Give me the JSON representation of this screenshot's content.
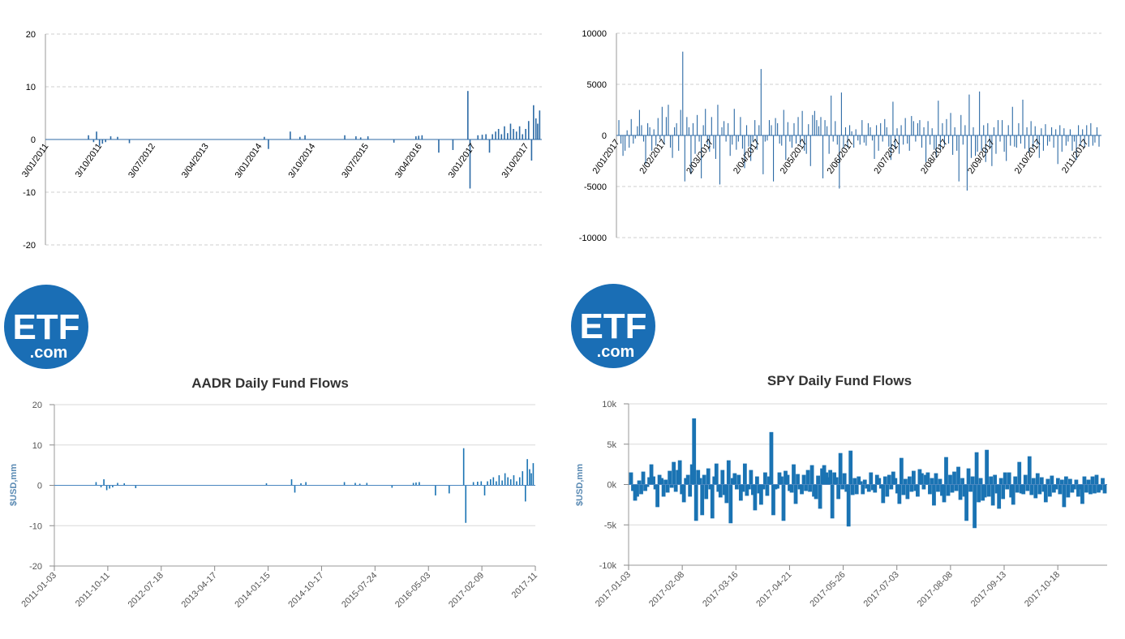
{
  "logo": {
    "big": "ETF",
    "small": ".com",
    "color": "#1a6eb5"
  },
  "chart_data": [
    {
      "type": "bar",
      "ylim": [
        -20,
        20
      ],
      "yticks": [
        -20,
        -10,
        0,
        10,
        20
      ],
      "x_tick_labels": [
        "3/01/2011",
        "3/10/2011",
        "3/07/2012",
        "3/04/2013",
        "3/01/2014",
        "3/10/2014",
        "3/07/2015",
        "3/04/2016",
        "3/01/2017",
        "3/10/2017"
      ],
      "grid": true,
      "color": "#2c6aa5",
      "x_range": [
        "2011-01-03",
        "2017-12-01"
      ],
      "x": [
        "2011-08-10",
        "2011-09-05",
        "2011-09-20",
        "2011-10-05",
        "2011-10-20",
        "2011-11-05",
        "2011-12-01",
        "2012-01-05",
        "2012-03-05",
        "2014-01-20",
        "2014-02-10",
        "2014-06-01",
        "2014-07-20",
        "2014-08-15",
        "2015-03-05",
        "2015-05-01",
        "2015-05-25",
        "2015-07-01",
        "2015-11-10",
        "2016-03-01",
        "2016-03-15",
        "2016-04-01",
        "2016-06-25",
        "2016-09-05",
        "2016-11-20",
        "2016-12-01",
        "2017-01-10",
        "2017-02-01",
        "2017-02-20",
        "2017-03-10",
        "2017-03-25",
        "2017-04-10",
        "2017-04-25",
        "2017-05-10",
        "2017-05-25",
        "2017-06-10",
        "2017-06-25",
        "2017-07-10",
        "2017-07-25",
        "2017-08-10",
        "2017-08-25",
        "2017-09-10",
        "2017-09-25",
        "2017-10-10",
        "2017-10-20",
        "2017-11-01",
        "2017-11-10",
        "2017-11-20"
      ],
      "values": [
        0.8,
        -0.5,
        1.5,
        -1.2,
        -0.8,
        -0.5,
        0.6,
        0.5,
        -0.7,
        0.5,
        -1.8,
        1.5,
        0.5,
        0.8,
        0.8,
        0.6,
        0.4,
        0.6,
        -0.6,
        0.6,
        0.7,
        0.8,
        -2.5,
        -2.0,
        9.2,
        -9.3,
        0.8,
        0.9,
        1.0,
        -2.5,
        1.0,
        1.5,
        2.0,
        1.0,
        2.5,
        1.2,
        3.0,
        2.0,
        1.5,
        2.5,
        1.0,
        2.0,
        3.5,
        -4.0,
        6.5,
        4.0,
        3.0,
        5.5
      ]
    },
    {
      "type": "bar",
      "ylim": [
        -10000,
        10000
      ],
      "yticks": [
        -10000,
        -5000,
        0,
        5000,
        10000
      ],
      "x_tick_labels": [
        "2/01/2017",
        "2/02/2017",
        "2/03/2017",
        "2/04/2017",
        "2/05/2017",
        "2/06/2017",
        "2/07/2017",
        "2/08/2017",
        "2/09/2017",
        "2/10/2017",
        "2/11/2017"
      ],
      "grid": true,
      "color": "#2c6aa5",
      "x_range": [
        "2017-01-03",
        "2017-11-24"
      ],
      "values": [
        1500,
        -800,
        -2000,
        -1500,
        500,
        -1200,
        1600,
        -800,
        -300,
        900,
        2500,
        1000,
        -600,
        -2800,
        1200,
        800,
        -1500,
        600,
        -1000,
        1700,
        -400,
        2800,
        -900,
        1800,
        3000,
        -1200,
        -2200,
        800,
        1200,
        -1500,
        2500,
        8200,
        -4500,
        1800,
        800,
        -3800,
        1200,
        -1800,
        2000,
        -600,
        -4200,
        1000,
        2600,
        -900,
        -1600,
        1800,
        -1300,
        -2300,
        3000,
        -4800,
        800,
        1400,
        -600,
        1200,
        -2000,
        -900,
        2600,
        -1400,
        -600,
        1800,
        -1300,
        -3200,
        1000,
        -1100,
        -2500,
        -600,
        1500,
        -1400,
        1000,
        6500,
        -3800,
        -600,
        -500,
        1500,
        1000,
        -4500,
        1700,
        1200,
        -800,
        -1000,
        2500,
        -2400,
        1300,
        -600,
        -1200,
        1200,
        -800,
        1800,
        -900,
        2400,
        -1500,
        -1800,
        1100,
        -3000,
        2000,
        2400,
        1500,
        900,
        1800,
        -4200,
        1500,
        900,
        -1800,
        3900,
        -600,
        1400,
        -900,
        -5200,
        4200,
        -1300,
        800,
        -1200,
        1000,
        400,
        -1200,
        600,
        -500,
        -900,
        1500,
        -700,
        -1000,
        1200,
        800,
        -500,
        -2300,
        1000,
        -1500,
        1200,
        -600,
        1600,
        800,
        -1100,
        -2400,
        3300,
        -1300,
        700,
        -1800,
        1000,
        -900,
        1700,
        -800,
        -1500,
        1900,
        1400,
        -600,
        1200,
        1500,
        -1200,
        800,
        -2600,
        1400,
        -900,
        700,
        -1400,
        -2200,
        3400,
        -1400,
        1200,
        -1000,
        1600,
        -800,
        2200,
        -1900,
        800,
        -1500,
        -4500,
        2000,
        -900,
        1000,
        -5400,
        4000,
        -2200,
        800,
        -2000,
        -1600,
        4300,
        -1500,
        1000,
        -2600,
        1200,
        -1100,
        -3000,
        800,
        -1800,
        1500,
        -600,
        1500,
        -1600,
        -2500,
        1000,
        -1000,
        2800,
        -1100,
        -1200,
        1200,
        -800,
        3500,
        -1300,
        800,
        -1700,
        1400,
        -1200,
        900,
        -900,
        -2200,
        700,
        -1500,
        1100,
        -1000,
        -600,
        800,
        -1200,
        600,
        -2800,
        1000,
        -1600,
        700,
        -1000,
        -600,
        600,
        -1500,
        -600,
        -2400,
        1000,
        -1000,
        600,
        -1200,
        1000,
        -1100,
        1200,
        -1000,
        -700,
        800,
        -1100
      ]
    },
    {
      "type": "bar",
      "title": "AADR Daily Fund Flows",
      "ylabel": "$USD,mm",
      "ylim": [
        -20,
        20
      ],
      "yticks": [
        -20,
        -10,
        0,
        10,
        20
      ],
      "x_tick_labels": [
        "2011-01-03",
        "2011-10-11",
        "2012-07-18",
        "2013-04-17",
        "2014-01-15",
        "2014-10-17",
        "2015-07-24",
        "2016-05-03",
        "2017-02-09",
        "2017-11"
      ],
      "grid": true,
      "color": "#1a73b3",
      "x_range": [
        "2011-01-03",
        "2017-12-01"
      ],
      "x": [
        "2011-08-10",
        "2011-09-05",
        "2011-09-20",
        "2011-10-05",
        "2011-10-20",
        "2011-11-05",
        "2011-12-01",
        "2012-01-05",
        "2012-03-05",
        "2014-01-20",
        "2014-0210",
        "2014-06-01",
        "2014-07-20",
        "2014-08-15",
        "2015-03-05",
        "2015-05-01",
        "2015-05-25",
        "2015-07-01",
        "2015-11-10",
        "2016-03-01",
        "2016-03-15",
        "2016-04-01",
        "2016-06-25",
        "2016-09-05",
        "2016-11-20",
        "2016-12-01",
        "2017-01-10",
        "2017-02-01",
        "2017-02-20",
        "2017-03-10",
        "2017-03-25",
        "2017-04-10",
        "2017-04-25",
        "2017-05-10",
        "2017-05-25",
        "2017-06-10",
        "2017-06-25",
        "2017-07-10",
        "2017-07-25",
        "2017-08-10",
        "2017-08-25",
        "2017-09-10",
        "2017-09-25",
        "2017-10-10",
        "2017-10-20",
        "2017-11-01",
        "2017-11-10",
        "2017-11-20"
      ],
      "values": [
        0.8,
        -0.5,
        1.5,
        -1.2,
        -0.8,
        -0.5,
        0.6,
        0.5,
        -0.7,
        0.5,
        -1.8,
        1.5,
        0.5,
        0.8,
        0.8,
        0.6,
        0.4,
        0.6,
        -0.6,
        0.6,
        0.7,
        0.8,
        -2.5,
        -2.0,
        9.2,
        -9.3,
        0.8,
        0.9,
        1.0,
        -2.5,
        1.0,
        1.5,
        2.0,
        1.0,
        2.5,
        1.2,
        3.0,
        2.0,
        1.5,
        2.5,
        1.0,
        2.0,
        3.5,
        -4.0,
        6.5,
        4.0,
        3.0,
        5.5
      ]
    },
    {
      "type": "bar",
      "title": "SPY Daily Fund Flows",
      "ylabel": "$USD,mm",
      "ylim": [
        -10000,
        10000
      ],
      "yticks": [
        -10000,
        -5000,
        0,
        5000,
        10000
      ],
      "ytick_labels": [
        "-10k",
        "-5k",
        "0k",
        "5k",
        "10k"
      ],
      "x_tick_labels": [
        "2017-01-03",
        "2017-02-08",
        "2017-03-16",
        "2017-04-21",
        "2017-05-26",
        "2017-07-03",
        "2017-08-08",
        "2017-09-13",
        "2017-10-18"
      ],
      "grid": true,
      "color": "#1a73b3",
      "x_range": [
        "2017-01-03",
        "2017-11-24"
      ],
      "values": [
        1500,
        -800,
        -2000,
        -1500,
        500,
        -1200,
        1600,
        -800,
        -300,
        900,
        2500,
        1000,
        -600,
        -2800,
        1200,
        800,
        -1500,
        600,
        -1000,
        1700,
        -400,
        2800,
        -900,
        1800,
        3000,
        -1200,
        -2200,
        800,
        1200,
        -1500,
        2500,
        8200,
        -4500,
        1800,
        800,
        -3800,
        1200,
        -1800,
        2000,
        -600,
        -4200,
        1000,
        2600,
        -900,
        -1600,
        1800,
        -1300,
        -2300,
        3000,
        -4800,
        800,
        1400,
        -600,
        1200,
        -2000,
        -900,
        2600,
        -1400,
        -600,
        1800,
        -1300,
        -3200,
        1000,
        -1100,
        -2500,
        -600,
        1500,
        -1400,
        1000,
        6500,
        -3800,
        -600,
        -500,
        1500,
        1000,
        -4500,
        1700,
        1200,
        -800,
        -1000,
        2500,
        -2400,
        1300,
        -600,
        -1200,
        1200,
        -800,
        1800,
        -900,
        2400,
        -1500,
        -1800,
        1100,
        -3000,
        2000,
        2400,
        1500,
        900,
        1800,
        -4200,
        1500,
        900,
        -1800,
        3900,
        -600,
        1400,
        -900,
        -5200,
        4200,
        -1300,
        800,
        -1200,
        1000,
        400,
        -1200,
        600,
        -500,
        -900,
        1500,
        -700,
        -1000,
        1200,
        800,
        -500,
        -2300,
        1000,
        -1500,
        1200,
        -600,
        1600,
        800,
        -1100,
        -2400,
        3300,
        -1300,
        700,
        -1800,
        1000,
        -900,
        1700,
        -800,
        -1500,
        1900,
        1400,
        -600,
        1200,
        1500,
        -1200,
        800,
        -2600,
        1400,
        -900,
        700,
        -1400,
        -2200,
        3400,
        -1400,
        1200,
        -1000,
        1600,
        -800,
        2200,
        -1900,
        800,
        -1500,
        -4500,
        2000,
        -900,
        1000,
        -5400,
        4000,
        -2200,
        800,
        -2000,
        -1600,
        4300,
        -1500,
        1000,
        -2600,
        1200,
        -1100,
        -3000,
        800,
        -1800,
        1500,
        -600,
        1500,
        -1600,
        -2500,
        1000,
        -1000,
        2800,
        -1100,
        -1200,
        1200,
        -800,
        3500,
        -1300,
        800,
        -1700,
        1400,
        -1200,
        900,
        -900,
        -2200,
        700,
        -1500,
        1100,
        -1000,
        -600,
        800,
        -1200,
        600,
        -2800,
        1000,
        -1600,
        700,
        -1000,
        -600,
        600,
        -1500,
        -600,
        -2400,
        1000,
        -1000,
        600,
        -1200,
        1000,
        -1100,
        1200,
        -1000,
        -700,
        800,
        -1100
      ]
    }
  ]
}
